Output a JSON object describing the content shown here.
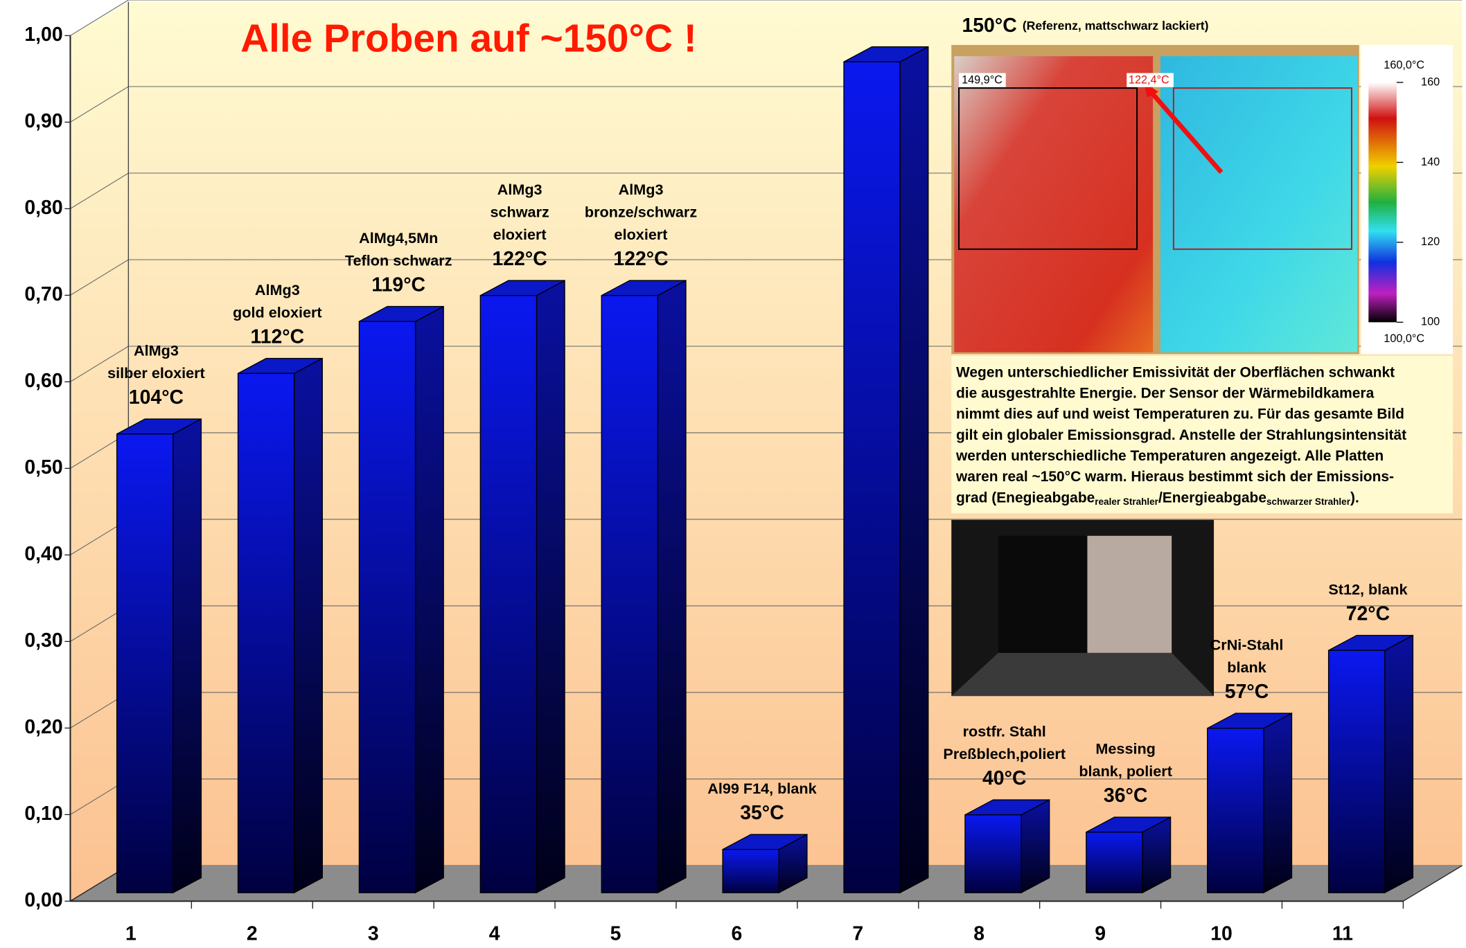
{
  "chart_data": {
    "type": "bar3d",
    "title": "Alle Proben auf ~150°C !",
    "categories": [
      "1",
      "2",
      "3",
      "4",
      "5",
      "6",
      "7",
      "8",
      "9",
      "10",
      "11"
    ],
    "values": [
      0.53,
      0.6,
      0.66,
      0.69,
      0.69,
      0.05,
      0.96,
      0.09,
      0.07,
      0.19,
      0.28
    ],
    "color": "#0a14e6",
    "ylim": [
      0,
      1
    ],
    "yticks": [
      {
        "value": 0,
        "label": "0,00"
      },
      {
        "value": 0.1,
        "label": "0,10"
      },
      {
        "value": 0.2,
        "label": "0,20"
      },
      {
        "value": 0.3,
        "label": "0,30"
      },
      {
        "value": 0.4,
        "label": "0,40"
      },
      {
        "value": 0.5,
        "label": "0,50"
      },
      {
        "value": 0.6,
        "label": "0,60"
      },
      {
        "value": 0.7,
        "label": "0,70"
      },
      {
        "value": 0.8,
        "label": "0,80"
      },
      {
        "value": 0.9,
        "label": "0,90"
      },
      {
        "value": 1,
        "label": "1,00"
      }
    ],
    "grid": true,
    "bar_labels": [
      [
        "AlMg3",
        "silber eloxiert",
        "104°C"
      ],
      [
        "AlMg3",
        "gold eloxiert",
        "112°C"
      ],
      [
        "AlMg4,5Mn",
        "Teflon schwarz",
        "119°C"
      ],
      [
        "AlMg3",
        "schwarz",
        "eloxiert",
        "122°C"
      ],
      [
        "AlMg3",
        "bronze/schwarz",
        "eloxiert",
        "122°C"
      ],
      [
        "Al99 F14, blank",
        "35°C"
      ],
      null,
      [
        "rostfr. Stahl",
        "Preßblech,poliert",
        "40°C"
      ],
      [
        "Messing",
        "blank, poliert",
        "36°C"
      ],
      [
        "CrNi-Stahl",
        "blank",
        "57°C"
      ],
      [
        "St12, blank",
        "72°C"
      ]
    ],
    "reference_label": {
      "temp": "150°C",
      "note": "(Referenz, mattschwarz lackiert)"
    },
    "thermal": {
      "spot_labels": [
        "149,9°C",
        "122,4°C"
      ],
      "scale_max_label": "160,0°C",
      "scale_min_label": "100,0°C",
      "scale_lim": [
        100,
        160
      ],
      "scale_ticks": [
        160,
        140,
        120,
        100
      ]
    },
    "explanation": [
      [
        {
          "text": "Wegen unterschiedlicher Emissivität der Oberflächen schwankt"
        }
      ],
      [
        {
          "text": "die ausgestrahlte Energie. Der Sensor der Wärmebildkamera"
        }
      ],
      [
        {
          "text": "nimmt dies auf und weist Temperaturen zu. Für das gesamte Bild"
        }
      ],
      [
        {
          "text": "gilt ein globaler Emissionsgrad. Anstelle der Strahlungsintensität"
        }
      ],
      [
        {
          "text": "werden unterschiedliche Temperaturen angezeigt. Alle Platten"
        }
      ],
      [
        {
          "text": "waren real ~150°C warm. Hieraus bestimmt sich der Emissions-"
        }
      ],
      [
        {
          "text": "grad (Enegieabgabe"
        },
        {
          "text": "realer Strahler",
          "sub": true
        },
        {
          "text": "/Energieabgabe"
        },
        {
          "text": "schwarzer Strahler",
          "sub": true
        },
        {
          "text": ")."
        }
      ]
    ]
  }
}
